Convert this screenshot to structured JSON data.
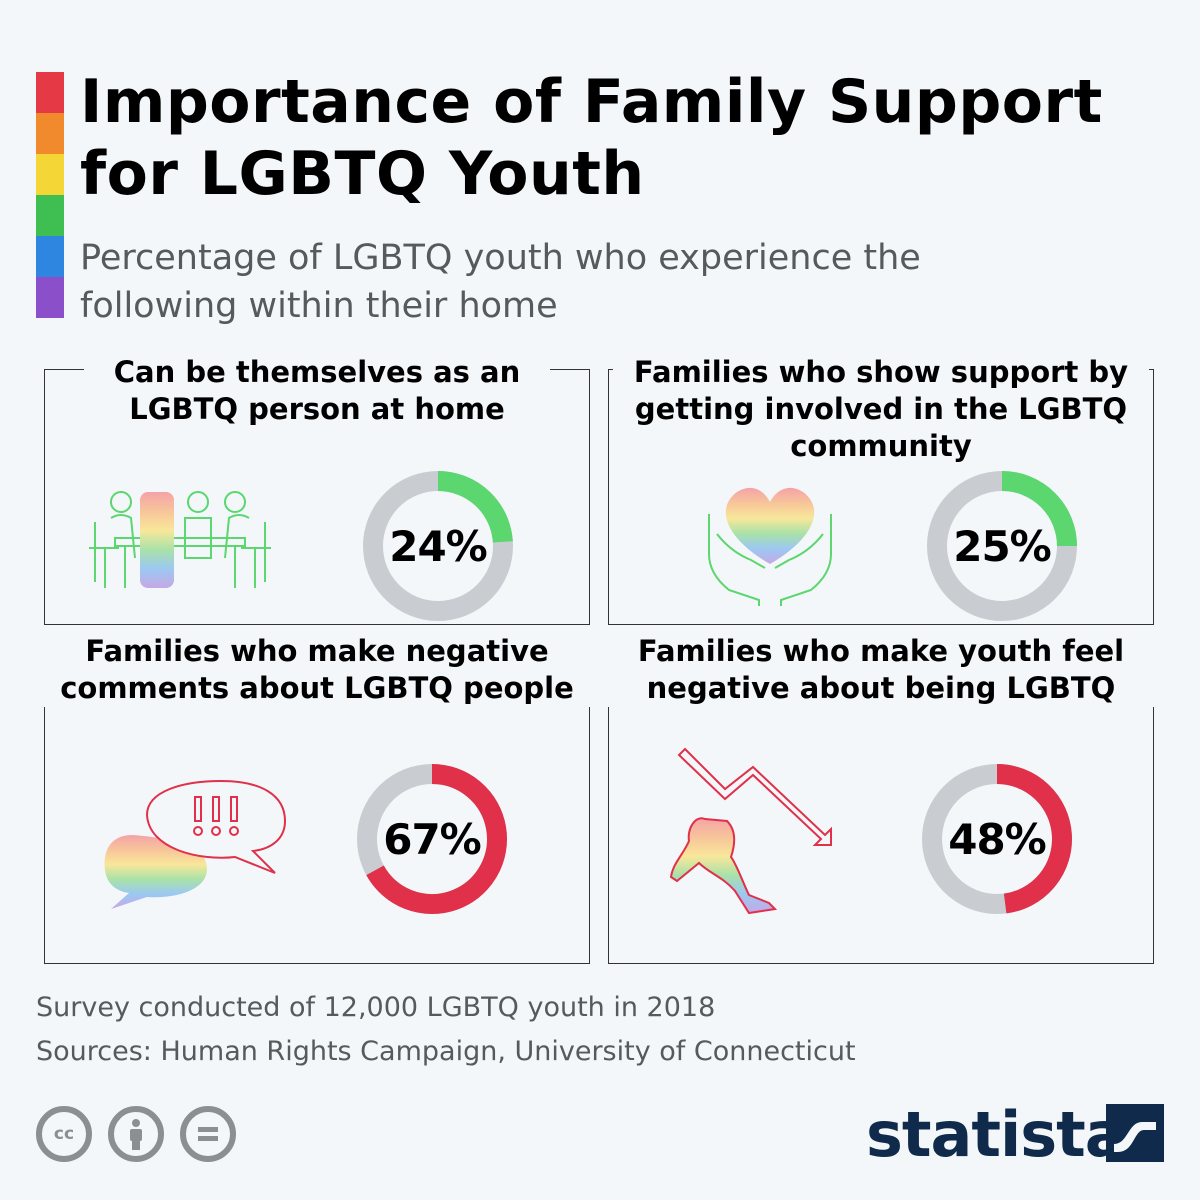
{
  "title": "Importance of Family Support for LGBTQ Youth",
  "subtitle": "Percentage of LGBTQ youth who experience the following within their home",
  "colors": {
    "rainbow": [
      "#e63946",
      "#f08a2c",
      "#f5d637",
      "#3fbf52",
      "#2f86e0",
      "#8b4fc9"
    ],
    "positive": "#5cd66e",
    "negative": "#e0304a",
    "track": "#c9cdd1"
  },
  "chart_data": {
    "type": "pie",
    "panels": [
      {
        "title": "Can be themselves as an LGBTQ person at home",
        "value": 24,
        "label": "24%",
        "icon": "family-dinner-icon",
        "sentiment": "positive"
      },
      {
        "title": "Families who show support by getting involved in the LGBTQ community",
        "value": 25,
        "label": "25%",
        "icon": "heart-in-hands-icon",
        "sentiment": "positive"
      },
      {
        "title": "Families who make negative comments about LGBTQ people",
        "value": 67,
        "label": "67%",
        "icon": "speech-bubbles-icon",
        "sentiment": "negative"
      },
      {
        "title": "Families who make youth feel negative about being LGBTQ",
        "value": 48,
        "label": "48%",
        "icon": "sad-person-arrow-icon",
        "sentiment": "negative"
      }
    ]
  },
  "footer": {
    "survey": "Survey conducted of 12,000 LGBTQ youth in 2018",
    "sources": "Sources: Human Rights Campaign, University of Connecticut",
    "license_icons": [
      "cc-icon",
      "attribution-icon",
      "no-derivatives-icon"
    ],
    "brand": "statista"
  }
}
